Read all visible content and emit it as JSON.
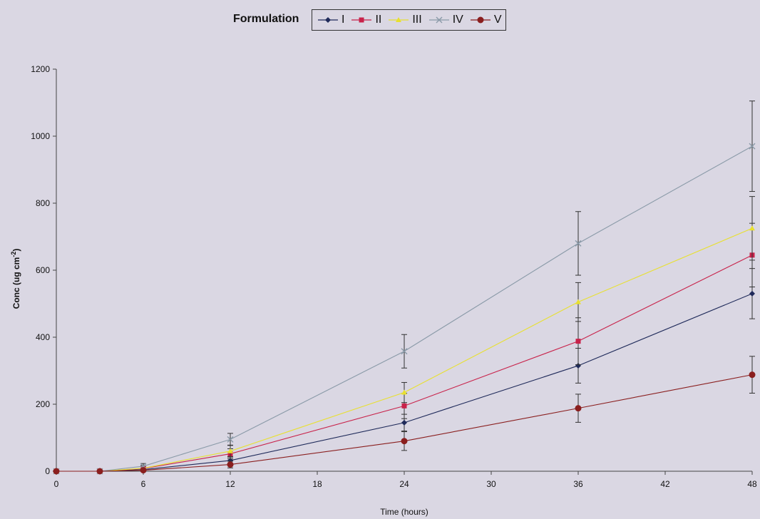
{
  "legend": {
    "title": "Formulation",
    "position": "top-center"
  },
  "chart_data": {
    "type": "line",
    "xlabel": "Time (hours)",
    "ylabel_main": "Conc (ug cm",
    "ylabel_sup": "-2",
    "ylabel_end": ")",
    "xlim": [
      0,
      48
    ],
    "ylim": [
      0,
      1200
    ],
    "xticks": [
      0,
      6,
      12,
      18,
      24,
      30,
      36,
      42,
      48
    ],
    "yticks": [
      0,
      200,
      400,
      600,
      800,
      1000,
      1200
    ],
    "grid": false,
    "x": [
      0,
      3,
      6,
      12,
      24,
      36,
      48
    ],
    "series": [
      {
        "name": "I",
        "color": "#1f2a5a",
        "marker": "diamond",
        "values": [
          0,
          0,
          5,
          32,
          145,
          315,
          530
        ],
        "errors": [
          0,
          2,
          4,
          12,
          25,
          52,
          75
        ]
      },
      {
        "name": "II",
        "color": "#c8224a",
        "marker": "square",
        "values": [
          0,
          0,
          8,
          52,
          195,
          388,
          645
        ],
        "errors": [
          0,
          2,
          6,
          15,
          38,
          70,
          95
        ]
      },
      {
        "name": "III",
        "color": "#e8e030",
        "marker": "triangle",
        "values": [
          0,
          0,
          9,
          60,
          235,
          505,
          725
        ],
        "errors": [
          0,
          2,
          8,
          18,
          30,
          58,
          95
        ]
      },
      {
        "name": "IV",
        "color": "#8a9aa8",
        "marker": "x",
        "values": [
          0,
          0,
          15,
          95,
          358,
          680,
          970
        ],
        "errors": [
          0,
          3,
          8,
          18,
          50,
          95,
          135
        ]
      },
      {
        "name": "V",
        "color": "#8a1e1e",
        "marker": "circle",
        "values": [
          0,
          0,
          3,
          20,
          90,
          188,
          288
        ],
        "errors": [
          0,
          2,
          3,
          10,
          28,
          42,
          55
        ]
      }
    ]
  }
}
